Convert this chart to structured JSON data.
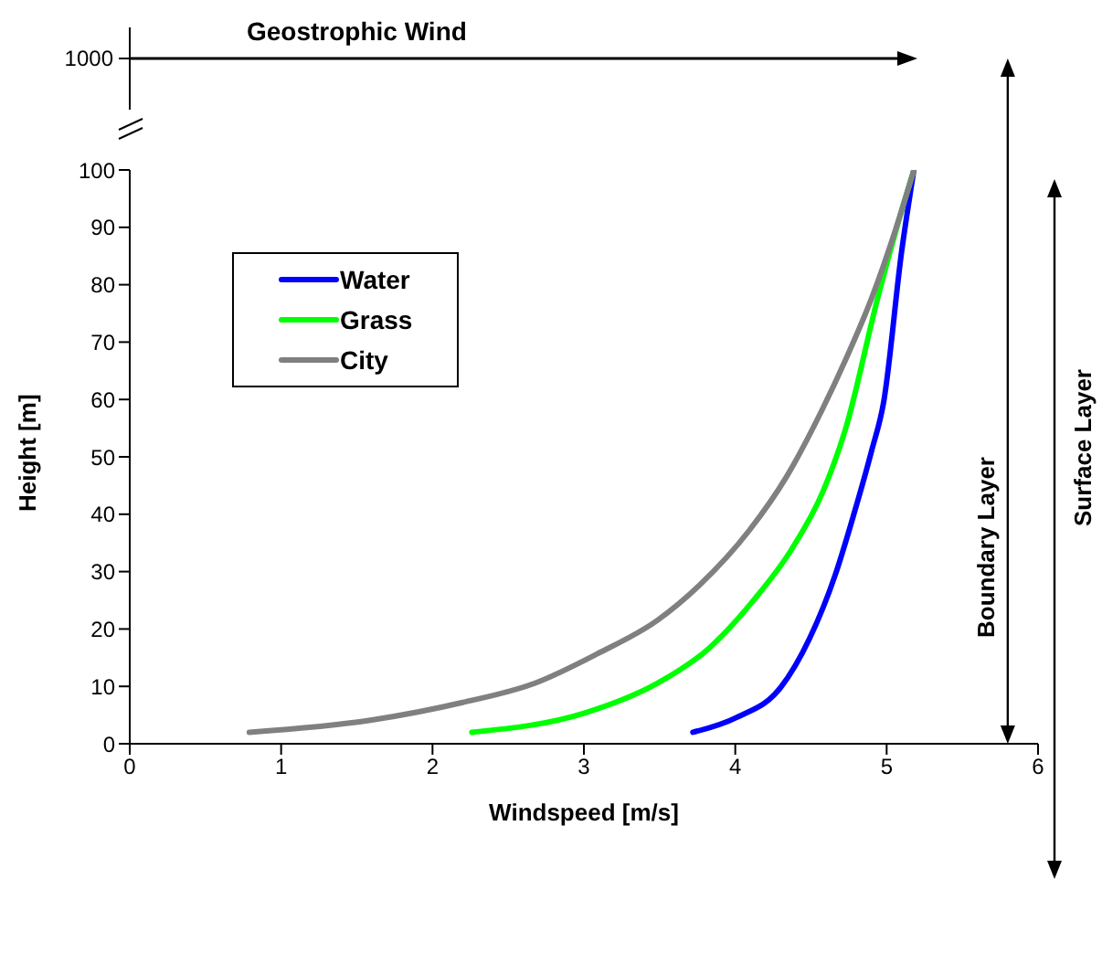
{
  "chart_data": {
    "type": "line",
    "xlabel": "Windspeed [m/s]",
    "ylabel": "Height [m]",
    "xlim": [
      0,
      6
    ],
    "ylim": [
      0,
      100
    ],
    "xticks": [
      0,
      1,
      2,
      3,
      4,
      5,
      6
    ],
    "yticks": [
      0,
      10,
      20,
      30,
      40,
      50,
      60,
      70,
      80,
      90,
      100
    ],
    "legend": "top left",
    "marker": "none",
    "line_style": "solid",
    "annotations": [
      "Geostrophic Wind",
      "1000",
      "Surface Layer"
    ],
    "ref_lines": [
      {
        "axis": "x",
        "value": 5.8,
        "label": "Boundary Layer"
      }
    ],
    "series": [
      {
        "name": "Water",
        "color": "#0000ff",
        "x": [
          3.72,
          4.01,
          4.3,
          4.49,
          4.66,
          4.78,
          4.9,
          4.98,
          5.1,
          5.18
        ],
        "values": [
          2,
          4.6,
          9.8,
          18.3,
          29.4,
          39.7,
          51,
          59.5,
          86,
          100
        ]
      },
      {
        "name": "Grass",
        "color": "#00ff00",
        "x": [
          2.26,
          3.01,
          3.49,
          3.82,
          4.13,
          4.37,
          4.58,
          4.73,
          4.94,
          5.1,
          5.18
        ],
        "values": [
          2,
          5.4,
          10.6,
          16.5,
          25.3,
          33.8,
          44,
          55,
          77.6,
          93,
          100
        ]
      },
      {
        "name": "City",
        "color": "#808080",
        "x": [
          0.79,
          1.59,
          2.2,
          2.68,
          3.09,
          3.49,
          3.77,
          4.09,
          4.34,
          4.57,
          4.73,
          4.9,
          5.06,
          5.18
        ],
        "values": [
          2,
          4.1,
          7.2,
          10.6,
          15.7,
          21.6,
          27.8,
          37.1,
          46.6,
          58,
          67,
          77.6,
          89.7,
          100
        ]
      }
    ]
  }
}
